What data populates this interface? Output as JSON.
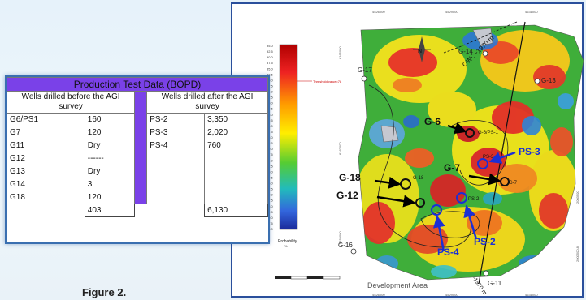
{
  "table": {
    "title": "Production Test Data (BOPD)",
    "col_before": "Wells drilled before the AGI survey",
    "col_after": "Wells drilled after the AGI survey",
    "before_rows": [
      {
        "well": "G6/PS1",
        "value": "160"
      },
      {
        "well": "G7",
        "value": "120"
      },
      {
        "well": "G11",
        "value": "Dry"
      },
      {
        "well": "G12",
        "value": "------"
      },
      {
        "well": "G13",
        "value": "Dry"
      },
      {
        "well": "G14",
        "value": "3"
      },
      {
        "well": "G18",
        "value": "120"
      }
    ],
    "after_rows": [
      {
        "well": "PS-2",
        "value": "3,350"
      },
      {
        "well": "PS-3",
        "value": "2,020"
      },
      {
        "well": "PS-4",
        "value": "760"
      }
    ],
    "total_before": "403",
    "total_after": "6,130"
  },
  "caption": "Figure 2.",
  "map": {
    "scale_values": [
      "95.0",
      "92.5",
      "90.0",
      "87.5",
      "85.0",
      "82.5",
      "80.0",
      "77.5",
      "75.0",
      "72.5",
      "70.0",
      "67.5",
      "65.0",
      "62.5",
      "60.0",
      "57.5",
      "55.0",
      "52.5",
      "50.0",
      "47.5",
      "45.0",
      "42.5",
      "40.0",
      "37.5",
      "35.0",
      "32.5",
      "30.0",
      "27.5",
      "25.0",
      "22.5",
      "20.0",
      "17.5",
      "15.0"
    ],
    "scale_title": "Probability",
    "scale_unit": "%",
    "threshold_label": "Threshold value=78",
    "top_ticks": [
      "4526000",
      "4529000",
      "4631000"
    ],
    "bottom_ticks": [
      "4526000",
      "4529000",
      "4631000"
    ],
    "left_ticks": [
      "6165000",
      "6162000",
      "6159000"
    ],
    "right_ticks": [
      "2003500",
      "2000500.8"
    ],
    "north_label": "N",
    "owc_label_top": "OWC~1970 m",
    "owc_label_bottom": "-1970 m",
    "area_label": "Development Area",
    "wells_small": [
      "G-17",
      "G-14",
      "G-13",
      "G-16",
      "G-11"
    ],
    "wells_big": [
      "G-6",
      "G-7",
      "G-18",
      "G-12",
      "PS-3",
      "PS-4",
      "PS-2"
    ],
    "map_tiny_labels": [
      "G-6/PS-1",
      "PS-3",
      "G-7",
      "G-18",
      "PS-2"
    ],
    "colors": {
      "purple": "#7a41e8",
      "arrow_blue": "#1a2fd6",
      "border": "#2a4f9c"
    }
  }
}
